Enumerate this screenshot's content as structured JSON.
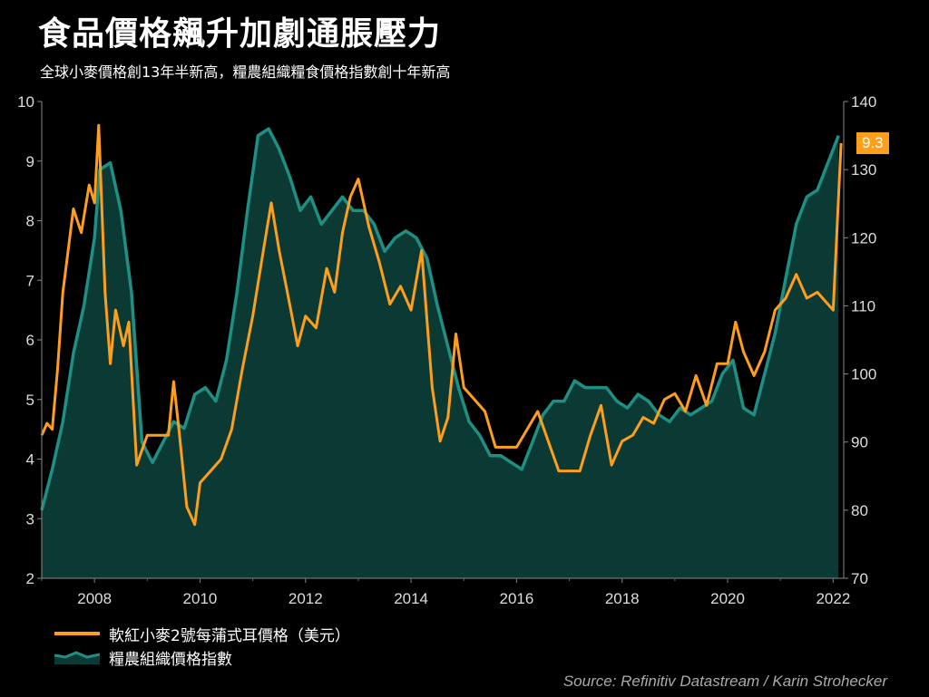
{
  "title": "食品價格飆升加劇通脹壓力",
  "subtitle": "全球小麥價格創13年半新高，糧農組織糧食價格指數創十年新高",
  "source": "Source: Refinitiv Datastream / Karin Strohecker",
  "last_value_label": "9.3",
  "colors": {
    "wheat": "#ff9e1b",
    "fao_line": "#1f8f84",
    "fao_fill": "#0b3a35",
    "background": "#000000"
  },
  "chart_data": {
    "type": "line",
    "x_ticks": [
      "2008",
      "2010",
      "2012",
      "2014",
      "2016",
      "2018",
      "2020",
      "2022"
    ],
    "y_left": {
      "ticks": [
        2,
        3,
        4,
        5,
        6,
        7,
        8,
        9,
        10
      ],
      "range": [
        2,
        10
      ]
    },
    "y_right": {
      "ticks": [
        70,
        80,
        90,
        100,
        110,
        120,
        130,
        140
      ],
      "range": [
        70,
        140
      ]
    },
    "series": [
      {
        "name": "軟紅小麥2號每蒲式耳價格（美元）",
        "axis": "left",
        "style": "line",
        "x": [
          2007.0,
          2007.1,
          2007.2,
          2007.3,
          2007.4,
          2007.6,
          2007.75,
          2007.9,
          2008.0,
          2008.08,
          2008.2,
          2008.3,
          2008.4,
          2008.55,
          2008.65,
          2008.8,
          2009.0,
          2009.2,
          2009.4,
          2009.5,
          2009.6,
          2009.75,
          2009.9,
          2010.0,
          2010.2,
          2010.4,
          2010.6,
          2010.8,
          2011.0,
          2011.2,
          2011.35,
          2011.5,
          2011.7,
          2011.85,
          2012.0,
          2012.2,
          2012.4,
          2012.55,
          2012.7,
          2012.85,
          2013.0,
          2013.2,
          2013.4,
          2013.6,
          2013.8,
          2014.0,
          2014.2,
          2014.4,
          2014.55,
          2014.7,
          2014.85,
          2015.0,
          2015.2,
          2015.4,
          2015.6,
          2015.8,
          2016.0,
          2016.2,
          2016.4,
          2016.6,
          2016.8,
          2017.0,
          2017.2,
          2017.4,
          2017.6,
          2017.8,
          2018.0,
          2018.2,
          2018.4,
          2018.6,
          2018.8,
          2019.0,
          2019.2,
          2019.4,
          2019.6,
          2019.8,
          2020.0,
          2020.15,
          2020.3,
          2020.5,
          2020.7,
          2020.9,
          2021.1,
          2021.3,
          2021.5,
          2021.7,
          2021.9,
          2022.0,
          2022.15
        ],
        "values": [
          4.4,
          4.6,
          4.5,
          5.5,
          6.8,
          8.2,
          7.8,
          8.6,
          8.3,
          9.6,
          6.8,
          5.6,
          6.5,
          5.9,
          6.3,
          3.9,
          4.4,
          4.4,
          4.4,
          5.3,
          4.5,
          3.2,
          2.9,
          3.6,
          3.8,
          4.0,
          4.5,
          5.5,
          6.4,
          7.5,
          8.3,
          7.5,
          6.6,
          5.9,
          6.4,
          6.2,
          7.2,
          6.8,
          7.8,
          8.4,
          8.7,
          7.9,
          7.3,
          6.6,
          6.9,
          6.5,
          7.5,
          5.2,
          4.3,
          4.7,
          6.1,
          5.2,
          5.0,
          4.8,
          4.2,
          4.2,
          4.2,
          4.5,
          4.8,
          4.3,
          3.8,
          3.8,
          3.8,
          4.4,
          4.9,
          3.9,
          4.3,
          4.4,
          4.7,
          4.6,
          5.0,
          5.1,
          4.8,
          5.4,
          4.9,
          5.6,
          5.6,
          6.3,
          5.8,
          5.4,
          5.8,
          6.5,
          6.7,
          7.1,
          6.7,
          6.8,
          6.6,
          6.5,
          9.3
        ]
      },
      {
        "name": "糧農組織價格指數",
        "axis": "right",
        "style": "area",
        "x": [
          2007.0,
          2007.2,
          2007.4,
          2007.6,
          2007.8,
          2008.0,
          2008.1,
          2008.3,
          2008.5,
          2008.7,
          2008.9,
          2009.1,
          2009.3,
          2009.5,
          2009.7,
          2009.9,
          2010.1,
          2010.3,
          2010.5,
          2010.7,
          2010.9,
          2011.1,
          2011.3,
          2011.5,
          2011.7,
          2011.9,
          2012.1,
          2012.3,
          2012.5,
          2012.7,
          2012.9,
          2013.1,
          2013.3,
          2013.5,
          2013.7,
          2013.9,
          2014.1,
          2014.3,
          2014.5,
          2014.7,
          2014.9,
          2015.1,
          2015.3,
          2015.5,
          2015.7,
          2015.9,
          2016.1,
          2016.3,
          2016.5,
          2016.7,
          2016.9,
          2017.1,
          2017.3,
          2017.5,
          2017.7,
          2017.9,
          2018.1,
          2018.3,
          2018.5,
          2018.7,
          2018.9,
          2019.1,
          2019.3,
          2019.5,
          2019.7,
          2019.9,
          2020.1,
          2020.3,
          2020.5,
          2020.7,
          2020.9,
          2021.1,
          2021.3,
          2021.5,
          2021.7,
          2021.9,
          2022.1
        ],
        "values": [
          80,
          86,
          93,
          103,
          110,
          120,
          130,
          131,
          124,
          112,
          90,
          87,
          90,
          93,
          92,
          97,
          98,
          96,
          102,
          112,
          124,
          135,
          136,
          133,
          129,
          124,
          126,
          122,
          124,
          126,
          124,
          124,
          122,
          118,
          120,
          121,
          120,
          117,
          110,
          104,
          98,
          93,
          91,
          88,
          88,
          87,
          86,
          90,
          94,
          96,
          96,
          99,
          98,
          98,
          98,
          96,
          95,
          97,
          96,
          94,
          93,
          95,
          94,
          95,
          96,
          100,
          102,
          95,
          94,
          100,
          106,
          114,
          122,
          126,
          127,
          131,
          135
        ]
      }
    ]
  }
}
